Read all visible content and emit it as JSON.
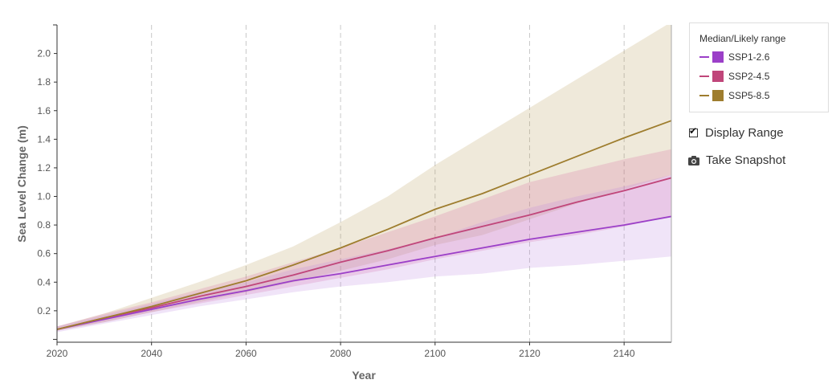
{
  "chart_data": {
    "type": "area",
    "xlabel": "Year",
    "ylabel": "Sea Level Change (m)",
    "xlim": [
      2020,
      2150
    ],
    "ylim": [
      -0.02,
      2.2
    ],
    "xticks": [
      2020,
      2040,
      2060,
      2080,
      2100,
      2120,
      2140
    ],
    "yticks": [
      0.2,
      0.4,
      0.6,
      0.8,
      1.0,
      1.2,
      1.4,
      1.6,
      1.8,
      2.0
    ],
    "ytick_labels": [
      "0.2",
      "0.4",
      "0.6",
      "0.8",
      "1.0",
      "1.2",
      "1.4",
      "1.6",
      "1.8",
      "2.0"
    ],
    "x": [
      2020,
      2030,
      2040,
      2050,
      2060,
      2070,
      2080,
      2090,
      2100,
      2110,
      2120,
      2130,
      2140,
      2150
    ],
    "grid": "vertical dashed",
    "legend_position": "right",
    "series": [
      {
        "name": "SSP1-2.6",
        "color": "#9b3fc8",
        "median": [
          0.07,
          0.14,
          0.21,
          0.28,
          0.34,
          0.41,
          0.46,
          0.52,
          0.58,
          0.64,
          0.7,
          0.75,
          0.8,
          0.86
        ],
        "lower": [
          0.05,
          0.11,
          0.17,
          0.23,
          0.28,
          0.33,
          0.37,
          0.4,
          0.44,
          0.46,
          0.5,
          0.52,
          0.55,
          0.58
        ],
        "upper": [
          0.09,
          0.17,
          0.25,
          0.33,
          0.4,
          0.49,
          0.56,
          0.63,
          0.71,
          0.82,
          0.92,
          1.0,
          1.07,
          1.15
        ]
      },
      {
        "name": "SSP2-4.5",
        "color": "#c0467a",
        "median": [
          0.07,
          0.15,
          0.22,
          0.3,
          0.37,
          0.45,
          0.54,
          0.62,
          0.71,
          0.79,
          0.87,
          0.96,
          1.04,
          1.13
        ],
        "lower": [
          0.06,
          0.12,
          0.19,
          0.25,
          0.31,
          0.37,
          0.43,
          0.49,
          0.56,
          0.62,
          0.68,
          0.73,
          0.79,
          0.86
        ],
        "upper": [
          0.09,
          0.18,
          0.26,
          0.35,
          0.44,
          0.54,
          0.64,
          0.75,
          0.86,
          0.98,
          1.1,
          1.18,
          1.26,
          1.33
        ]
      },
      {
        "name": "SSP5-8.5",
        "color": "#9e7d2e",
        "median": [
          0.07,
          0.15,
          0.23,
          0.32,
          0.41,
          0.52,
          0.64,
          0.77,
          0.91,
          1.02,
          1.15,
          1.28,
          1.41,
          1.53
        ],
        "lower": [
          0.06,
          0.12,
          0.19,
          0.26,
          0.33,
          0.4,
          0.48,
          0.56,
          0.66,
          0.73,
          0.84,
          0.95,
          1.05,
          1.15
        ],
        "upper": [
          0.09,
          0.18,
          0.29,
          0.4,
          0.52,
          0.65,
          0.82,
          1.0,
          1.22,
          1.42,
          1.62,
          1.82,
          2.02,
          2.22
        ]
      }
    ]
  },
  "legend": {
    "title": "Median/Likely range",
    "items": [
      {
        "label": "SSP1-2.6",
        "color": "#9b3fc8"
      },
      {
        "label": "SSP2-4.5",
        "color": "#c0467a"
      },
      {
        "label": "SSP5-8.5",
        "color": "#9e7d2e"
      }
    ]
  },
  "controls": {
    "display_range_label": "Display Range",
    "display_range_checked": true,
    "snapshot_label": "Take Snapshot",
    "snapshot_icon": "camera-icon"
  }
}
